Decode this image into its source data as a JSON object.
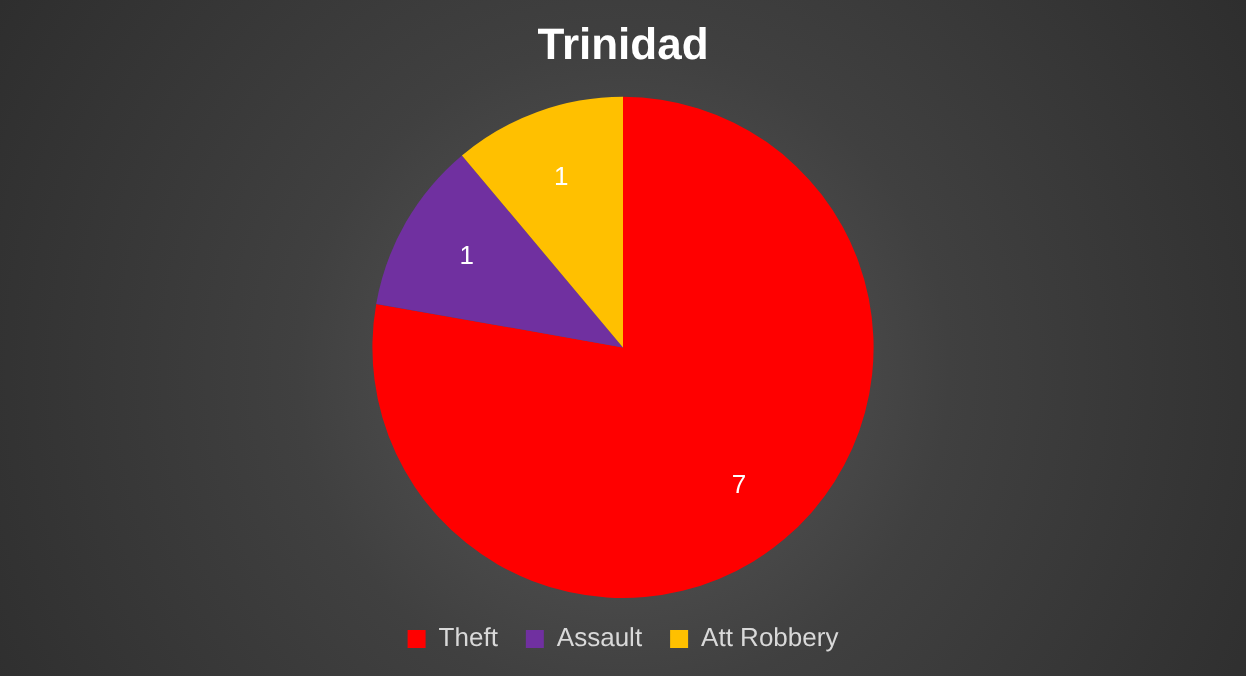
{
  "chart_data": {
    "type": "pie",
    "title": "Trinidad",
    "categories": [
      "Theft",
      "Assault",
      "Att Robbery"
    ],
    "values": [
      7,
      1,
      1
    ],
    "colors": [
      "#ff0000",
      "#7030a0",
      "#ffc000"
    ],
    "data_labels": true,
    "legend": "bottom"
  }
}
